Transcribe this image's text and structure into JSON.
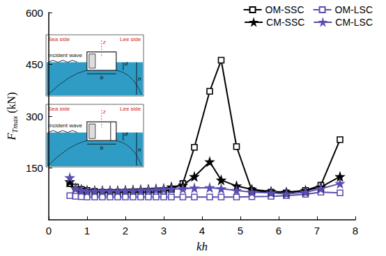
{
  "chart_data": {
    "type": "line",
    "x_label": "kh",
    "y_label": {
      "main": "F",
      "sub": "Tmax",
      "unit": "(kN)"
    },
    "xlim": [
      0,
      8
    ],
    "xticks": [
      0,
      1,
      2,
      3,
      4,
      5,
      6,
      7,
      8
    ],
    "ylim": [
      0,
      600
    ],
    "yticks": [
      150,
      300,
      450,
      600
    ],
    "grid": false,
    "legend": "upper right",
    "x": [
      0.55,
      0.7,
      0.85,
      1.0,
      1.2,
      1.4,
      1.6,
      1.8,
      2.0,
      2.2,
      2.4,
      2.6,
      2.8,
      3.0,
      3.2,
      3.5,
      3.8,
      4.2,
      4.5,
      4.9,
      5.3,
      5.8,
      6.2,
      6.7,
      7.1,
      7.6
    ],
    "series": [
      {
        "name": "OM-SSC",
        "color": "#000000",
        "marker": "square",
        "values": [
          105,
          95,
          88,
          85,
          82,
          80,
          80,
          80,
          80,
          80,
          80,
          80,
          80,
          82,
          88,
          105,
          210,
          372,
          462,
          212,
          85,
          80,
          78,
          85,
          100,
          232
        ]
      },
      {
        "name": "OM-LSC",
        "color": "#5a4fb0",
        "marker": "square",
        "values": [
          70,
          68,
          67,
          66,
          66,
          66,
          66,
          66,
          66,
          66,
          66,
          66,
          66,
          66,
          66,
          66,
          66,
          66,
          66,
          66,
          67,
          68,
          70,
          74,
          80,
          78
        ]
      },
      {
        "name": "CM-SSC",
        "color": "#000000",
        "marker": "star",
        "values": [
          110,
          92,
          88,
          85,
          84,
          84,
          84,
          84,
          85,
          86,
          87,
          88,
          89,
          90,
          95,
          100,
          125,
          168,
          115,
          98,
          88,
          82,
          80,
          85,
          95,
          125
        ]
      },
      {
        "name": "CM-LSC",
        "color": "#5a4fb0",
        "marker": "star",
        "values": [
          122,
          90,
          85,
          82,
          83,
          83,
          83,
          83,
          84,
          84,
          85,
          86,
          87,
          88,
          89,
          90,
          92,
          93,
          90,
          85,
          80,
          78,
          75,
          80,
          90,
          105
        ]
      }
    ],
    "insets": [
      {
        "sea_label": "Sea side",
        "lee_label": "Lee side",
        "wave_label": "Incident wave",
        "width_label": "b",
        "draft_label": "d",
        "depth_label": "h",
        "axis_label": "z"
      },
      {
        "sea_label": "Sea side",
        "lee_label": "Lee side",
        "wave_label": "Incident wave",
        "width_label": "b",
        "draft_label": "d",
        "depth_label": "h",
        "axis_label": "z"
      }
    ]
  }
}
